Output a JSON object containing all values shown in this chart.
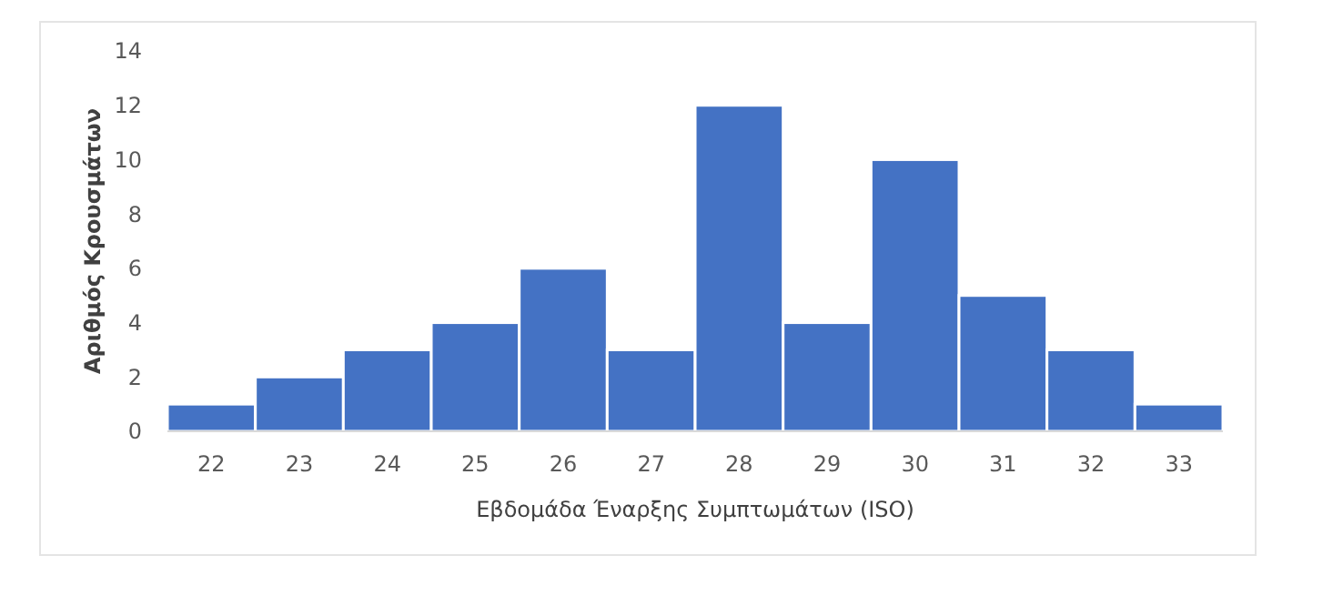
{
  "chart_data": {
    "type": "bar",
    "xlabel": "Εβδομάδα Έναρξης Συμπτωμάτων (ISO)",
    "ylabel": "Αριθμός Κρουσμάτων",
    "categories": [
      "22",
      "23",
      "24",
      "25",
      "26",
      "27",
      "28",
      "29",
      "30",
      "31",
      "32",
      "33"
    ],
    "values": [
      1,
      2,
      3,
      4,
      6,
      3,
      12,
      4,
      10,
      5,
      3,
      1
    ],
    "color": "#4472c4",
    "ylim": [
      0,
      14
    ],
    "yticks": [
      0,
      2,
      4,
      6,
      8,
      10,
      12,
      14
    ],
    "grid": false
  }
}
